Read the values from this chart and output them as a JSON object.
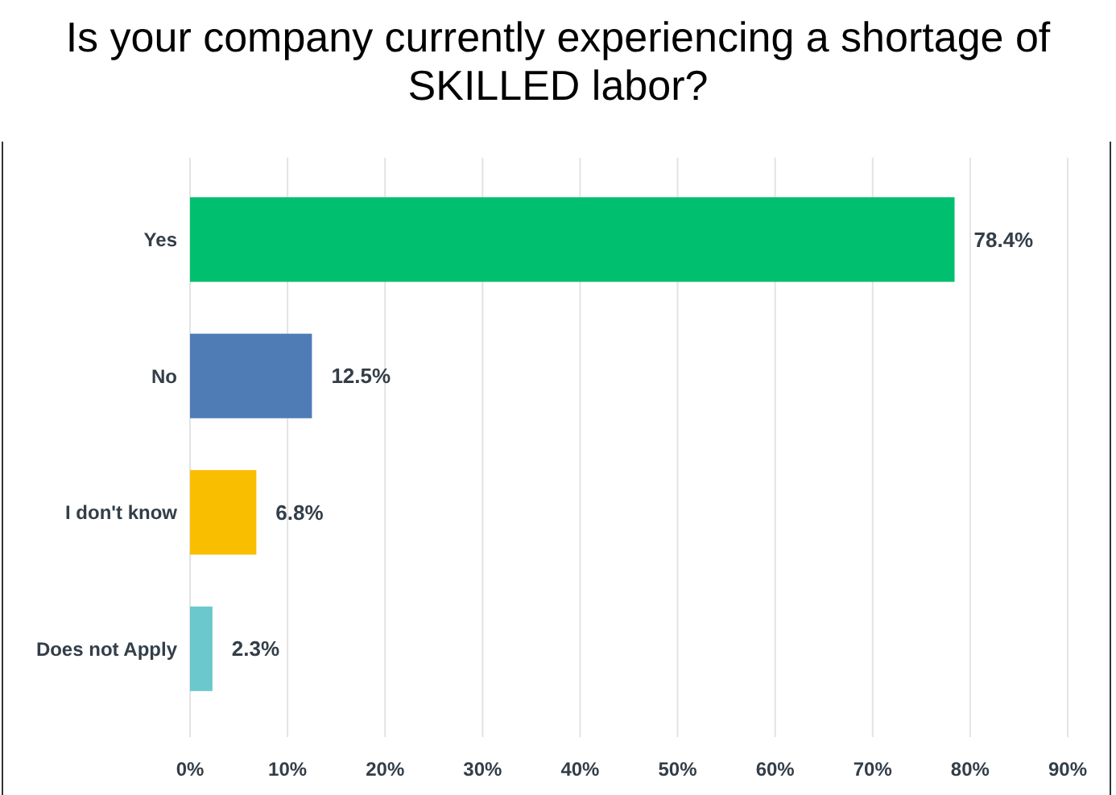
{
  "chart_data": {
    "type": "bar",
    "orientation": "horizontal",
    "title": "Is your company currently experiencing a shortage of SKILLED labor?",
    "categories": [
      "Yes",
      "No",
      "I don't know",
      "Does not Apply"
    ],
    "values": [
      78.4,
      12.5,
      6.8,
      2.3
    ],
    "colors": [
      "#00bf6f",
      "#507cb6",
      "#f9be00",
      "#6bc8cd"
    ],
    "value_labels": [
      "78.4%",
      "12.5%",
      "6.8%",
      "2.3%"
    ],
    "xlim": [
      0,
      90
    ],
    "xticks": [
      {
        "value": 0,
        "label": "0%"
      },
      {
        "value": 10,
        "label": "10%"
      },
      {
        "value": 20,
        "label": "20%"
      },
      {
        "value": 30,
        "label": "30%"
      },
      {
        "value": 40,
        "label": "40%"
      },
      {
        "value": 50,
        "label": "50%"
      },
      {
        "value": 60,
        "label": "60%"
      },
      {
        "value": 70,
        "label": "70%"
      },
      {
        "value": 80,
        "label": "80%"
      },
      {
        "value": 90,
        "label": "90%"
      }
    ],
    "grid": "x"
  }
}
